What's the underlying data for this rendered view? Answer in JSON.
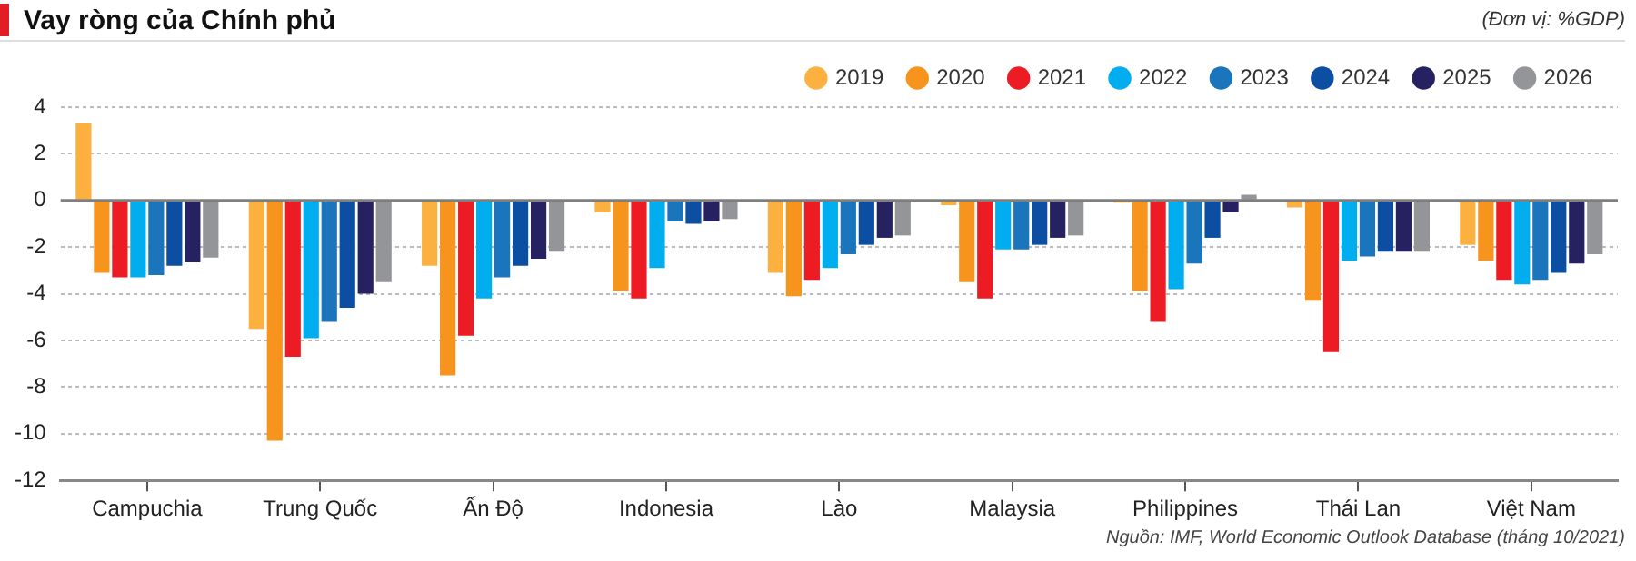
{
  "chart_data": {
    "type": "bar",
    "title": "Vay ròng của Chính phủ",
    "subtitle": "(Đơn vị: %GDP)",
    "annotations": [
      "Nguồn: IMF, World Economic Outlook Database (tháng 10/2021)"
    ],
    "categories": [
      "Campuchia",
      "Trung Quốc",
      "Ấn Độ",
      "Indonesia",
      "Lào",
      "Malaysia",
      "Philippines",
      "Thái Lan",
      "Việt Nam"
    ],
    "series": [
      {
        "name": "2019",
        "color": "#fbb040",
        "values": [
          3.3,
          -5.5,
          -2.8,
          -0.5,
          -3.1,
          -0.2,
          -0.1,
          -0.3,
          -1.9
        ]
      },
      {
        "name": "2020",
        "color": "#f7941d",
        "values": [
          -3.1,
          -10.3,
          -7.5,
          -3.9,
          -4.1,
          -3.5,
          -3.9,
          -4.3,
          -2.6
        ]
      },
      {
        "name": "2021",
        "color": "#ed1c24",
        "values": [
          -3.3,
          -6.7,
          -5.8,
          -4.2,
          -3.4,
          -4.2,
          -5.2,
          -6.5,
          -3.4
        ]
      },
      {
        "name": "2022",
        "color": "#00aeef",
        "values": [
          -3.3,
          -5.9,
          -4.2,
          -2.9,
          -2.9,
          -2.1,
          -3.8,
          -2.6,
          -3.6
        ]
      },
      {
        "name": "2023",
        "color": "#1b75bc",
        "values": [
          -3.2,
          -5.2,
          -3.3,
          -0.9,
          -2.3,
          -2.1,
          -2.7,
          -2.4,
          -3.4
        ]
      },
      {
        "name": "2024",
        "color": "#0b4ea2",
        "values": [
          -2.8,
          -4.6,
          -2.8,
          -1.0,
          -1.9,
          -1.9,
          -1.6,
          -2.2,
          -3.1
        ]
      },
      {
        "name": "2025",
        "color": "#262262",
        "values": [
          -2.65,
          -4.0,
          -2.5,
          -0.9,
          -1.6,
          -1.6,
          -0.5,
          -2.2,
          -2.7
        ]
      },
      {
        "name": "2026",
        "color": "#939598",
        "values": [
          -2.45,
          -3.5,
          -2.2,
          -0.8,
          -1.5,
          -1.5,
          0.25,
          -2.2,
          -2.3
        ]
      }
    ],
    "ylim": [
      -12,
      4
    ],
    "yticks": [
      -12,
      -10,
      -8,
      -6,
      -4,
      -2,
      0,
      2,
      4
    ],
    "grid": "y",
    "legend": "top right",
    "ref_lines": [
      {
        "axis": "y",
        "value": 0,
        "color": "#7f7f7f"
      }
    ]
  }
}
